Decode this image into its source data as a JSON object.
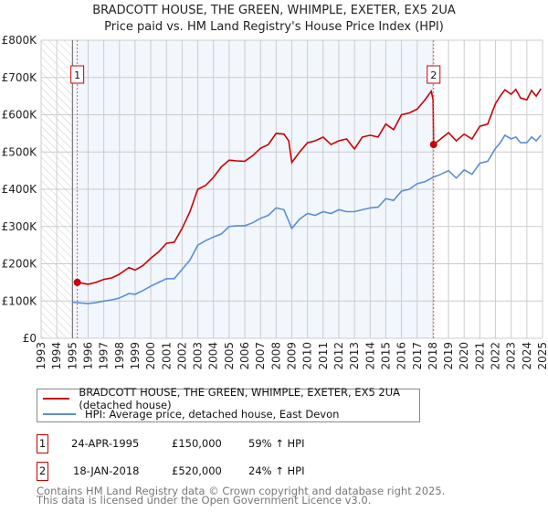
{
  "header": {
    "title_line1": "BRADCOTT HOUSE, THE GREEN, WHIMPLE, EXETER, EX5 2UA",
    "title_line2": "Price paid vs. HM Land Registry's House Price Index (HPI)"
  },
  "chart_data": {
    "type": "line",
    "title": "BRADCOTT HOUSE, THE GREEN, WHIMPLE, EXETER, EX5 2UA — Price paid vs. HM Land Registry's House Price Index (HPI)",
    "xlim": [
      1993,
      2025
    ],
    "ylim": [
      0,
      800000
    ],
    "x_ticks": [
      "1993",
      "1994",
      "1995",
      "1996",
      "1997",
      "1998",
      "1999",
      "2000",
      "2001",
      "2002",
      "2003",
      "2004",
      "2005",
      "2006",
      "2007",
      "2008",
      "2009",
      "2010",
      "2011",
      "2012",
      "2013",
      "2014",
      "2015",
      "2016",
      "2017",
      "2018",
      "2019",
      "2020",
      "2021",
      "2022",
      "2023",
      "2024",
      "2025"
    ],
    "y_ticks": [
      {
        "v": 0,
        "label": "£0"
      },
      {
        "v": 100000,
        "label": "£100K"
      },
      {
        "v": 200000,
        "label": "£200K"
      },
      {
        "v": 300000,
        "label": "£300K"
      },
      {
        "v": 400000,
        "label": "£400K"
      },
      {
        "v": 500000,
        "label": "£500K"
      },
      {
        "v": 600000,
        "label": "£600K"
      },
      {
        "v": 700000,
        "label": "£700K"
      },
      {
        "v": 800000,
        "label": "£800K"
      }
    ],
    "grid": true,
    "series": [
      {
        "name": "BRADCOTT HOUSE, THE GREEN, WHIMPLE, EXETER, EX5 2UA (detached house)",
        "color": "#cc0000",
        "x": [
          1995.3,
          1995.6,
          1996,
          1996.5,
          1997,
          1997.5,
          1998,
          1998.6,
          1999,
          1999.5,
          2000,
          2000.5,
          2001,
          2001.5,
          2002,
          2002.5,
          2003,
          2003.5,
          2004,
          2004.5,
          2005,
          2005.5,
          2006,
          2006.5,
          2007,
          2007.5,
          2008,
          2008.5,
          2008.8,
          2009,
          2009.5,
          2010,
          2010.5,
          2011,
          2011.5,
          2012,
          2012.5,
          2013,
          2013.5,
          2014,
          2014.5,
          2015,
          2015.5,
          2016,
          2016.5,
          2017,
          2017.5,
          2017.9,
          2018.02,
          2018.05,
          2018.5,
          2019,
          2019.5,
          2020,
          2020.5,
          2021,
          2021.5,
          2022,
          2022.3,
          2022.6,
          2023,
          2023.3,
          2023.6,
          2024,
          2024.3,
          2024.6,
          2024.9
        ],
        "y": [
          150000,
          148000,
          145000,
          150000,
          158000,
          162000,
          172000,
          190000,
          183000,
          195000,
          215000,
          232000,
          255000,
          258000,
          295000,
          340000,
          400000,
          410000,
          432000,
          460000,
          478000,
          476000,
          475000,
          490000,
          510000,
          520000,
          550000,
          548000,
          530000,
          472000,
          500000,
          525000,
          530000,
          540000,
          520000,
          530000,
          535000,
          508000,
          540000,
          545000,
          540000,
          575000,
          560000,
          600000,
          605000,
          615000,
          640000,
          663000,
          640000,
          520000,
          535000,
          552000,
          530000,
          548000,
          535000,
          569000,
          575000,
          630000,
          650000,
          667000,
          655000,
          668000,
          645000,
          640000,
          665000,
          650000,
          670000
        ]
      },
      {
        "name": "HPI: Average price, detached house, East Devon",
        "color": "#5b8fd4",
        "x": [
          1995,
          1995.5,
          1996,
          1996.5,
          1997,
          1997.5,
          1998,
          1998.6,
          1999,
          1999.5,
          2000,
          2000.5,
          2001,
          2001.5,
          2002,
          2002.5,
          2003,
          2003.5,
          2004,
          2004.5,
          2005,
          2005.5,
          2006,
          2006.5,
          2007,
          2007.5,
          2008,
          2008.5,
          2009,
          2009.5,
          2010,
          2010.5,
          2011,
          2011.5,
          2012,
          2012.5,
          2013,
          2013.5,
          2014,
          2014.5,
          2015,
          2015.5,
          2016,
          2016.5,
          2017,
          2017.5,
          2018,
          2018.5,
          2019,
          2019.5,
          2020,
          2020.5,
          2021,
          2021.5,
          2022,
          2022.3,
          2022.6,
          2023,
          2023.3,
          2023.6,
          2024,
          2024.3,
          2024.6,
          2024.9
        ],
        "y": [
          97000,
          95000,
          93000,
          96000,
          100000,
          103000,
          108000,
          120000,
          118000,
          128000,
          140000,
          150000,
          160000,
          160000,
          185000,
          210000,
          250000,
          262000,
          272000,
          280000,
          300000,
          302000,
          302000,
          310000,
          322000,
          330000,
          350000,
          345000,
          295000,
          320000,
          335000,
          330000,
          340000,
          335000,
          345000,
          340000,
          340000,
          345000,
          350000,
          352000,
          375000,
          370000,
          395000,
          400000,
          415000,
          420000,
          432000,
          440000,
          450000,
          430000,
          452000,
          440000,
          470000,
          475000,
          510000,
          525000,
          545000,
          535000,
          540000,
          525000,
          525000,
          540000,
          530000,
          545000
        ]
      }
    ],
    "sales": [
      {
        "label": "1",
        "x": 1995.31,
        "y": 150000
      },
      {
        "label": "2",
        "x": 2018.05,
        "y": 520000
      }
    ],
    "legend": "below"
  },
  "legend": {
    "red_label": "BRADCOTT HOUSE, THE GREEN, WHIMPLE, EXETER, EX5 2UA (detached house)",
    "blue_label": "HPI: Average price, detached house, East Devon"
  },
  "transactions": [
    {
      "num": "1",
      "date": "24-APR-1995",
      "price": "£150,000",
      "hpi": "59% ↑ HPI"
    },
    {
      "num": "2",
      "date": "18-JAN-2018",
      "price": "£520,000",
      "hpi": "24% ↑ HPI"
    }
  ],
  "footer": {
    "line1": "Contains HM Land Registry data © Crown copyright and database right 2025.",
    "line2": "This data is licensed under the Open Government Licence v3.0."
  }
}
